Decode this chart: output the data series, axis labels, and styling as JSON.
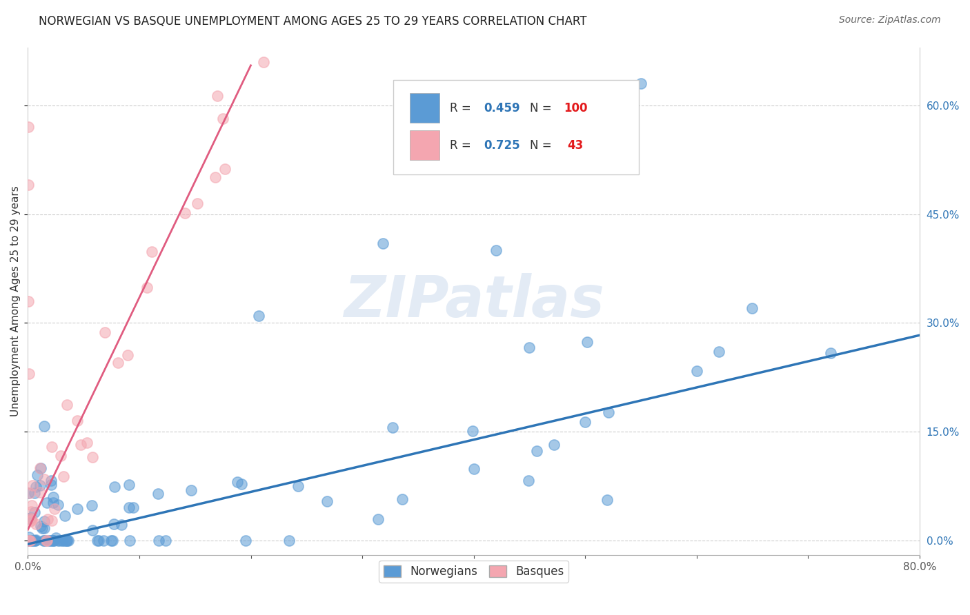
{
  "title": "NORWEGIAN VS BASQUE UNEMPLOYMENT AMONG AGES 25 TO 29 YEARS CORRELATION CHART",
  "source": "Source: ZipAtlas.com",
  "ylabel": "Unemployment Among Ages 25 to 29 years",
  "xlim": [
    0.0,
    0.8
  ],
  "ylim": [
    -0.02,
    0.68
  ],
  "xticks": [
    0.0,
    0.1,
    0.2,
    0.3,
    0.4,
    0.5,
    0.6,
    0.7,
    0.8
  ],
  "xticklabels": [
    "0.0%",
    "",
    "",
    "",
    "",
    "",
    "",
    "",
    "80.0%"
  ],
  "yticks_left": [],
  "yticks_right": [
    0.0,
    0.15,
    0.3,
    0.45,
    0.6
  ],
  "yticklabels_right": [
    "0.0%",
    "15.0%",
    "30.0%",
    "45.0%",
    "60.0%"
  ],
  "norwegian_color": "#5b9bd5",
  "basque_color": "#f4a6b0",
  "norwegian_line_color": "#2e75b6",
  "basque_line_color": "#e05c80",
  "R_norwegian": 0.459,
  "N_norwegian": 100,
  "R_basque": 0.725,
  "N_basque": 43,
  "background_color": "#ffffff",
  "grid_color": "#cccccc",
  "watermark": "ZIPatlas",
  "title_color": "#222222",
  "source_color": "#666666",
  "ylabel_color": "#333333",
  "tick_color": "#555555",
  "right_tick_color": "#2e75b6"
}
